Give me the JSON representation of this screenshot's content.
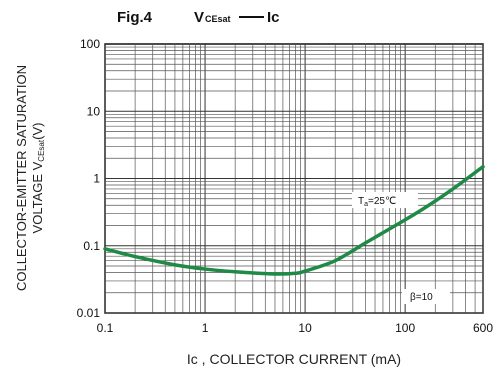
{
  "figure": {
    "label": "Fig.4",
    "title_main": "V",
    "title_sub": "CEsat",
    "title_rest": "Ic"
  },
  "chart_data": {
    "type": "line",
    "xscale": "log",
    "yscale": "log",
    "xlim": [
      0.1,
      600
    ],
    "ylim": [
      0.01,
      100
    ],
    "x_ticks": [
      {
        "value": 0.1,
        "label": "0.1"
      },
      {
        "value": 1,
        "label": "1"
      },
      {
        "value": 10,
        "label": "10"
      },
      {
        "value": 100,
        "label": "100"
      },
      {
        "value": 600,
        "label": "600"
      }
    ],
    "y_ticks": [
      {
        "value": 100,
        "label": "100"
      },
      {
        "value": 10,
        "label": "10"
      },
      {
        "value": 1,
        "label": "1"
      },
      {
        "value": 0.1,
        "label": "0.1"
      },
      {
        "value": 0.01,
        "label": "0.01"
      }
    ],
    "xlabel": "Ic , COLLECTOR CURRENT (mA)",
    "ylabel_line1": "COLLECTOR-EMITTER SATURATION",
    "ylabel_line2_main": "VOLTAGE V",
    "ylabel_line2_sub": "CEsat",
    "ylabel_line2_unit": "(V)",
    "grid": true,
    "series": [
      {
        "color": "#1e8a45",
        "x": [
          0.1,
          0.2,
          0.5,
          1,
          2,
          5,
          8,
          10,
          20,
          40,
          80,
          150,
          300,
          600
        ],
        "y": [
          0.09,
          0.069,
          0.052,
          0.045,
          0.041,
          0.038,
          0.039,
          0.042,
          0.06,
          0.11,
          0.2,
          0.35,
          0.7,
          1.5
        ]
      }
    ],
    "annotations": [
      {
        "text_main": "T",
        "text_sub": "a",
        "text_rest": "=25℃",
        "at": [
          150,
          1.1
        ]
      },
      {
        "text_main": "β=10",
        "at": [
          170,
          0.017
        ]
      }
    ]
  }
}
